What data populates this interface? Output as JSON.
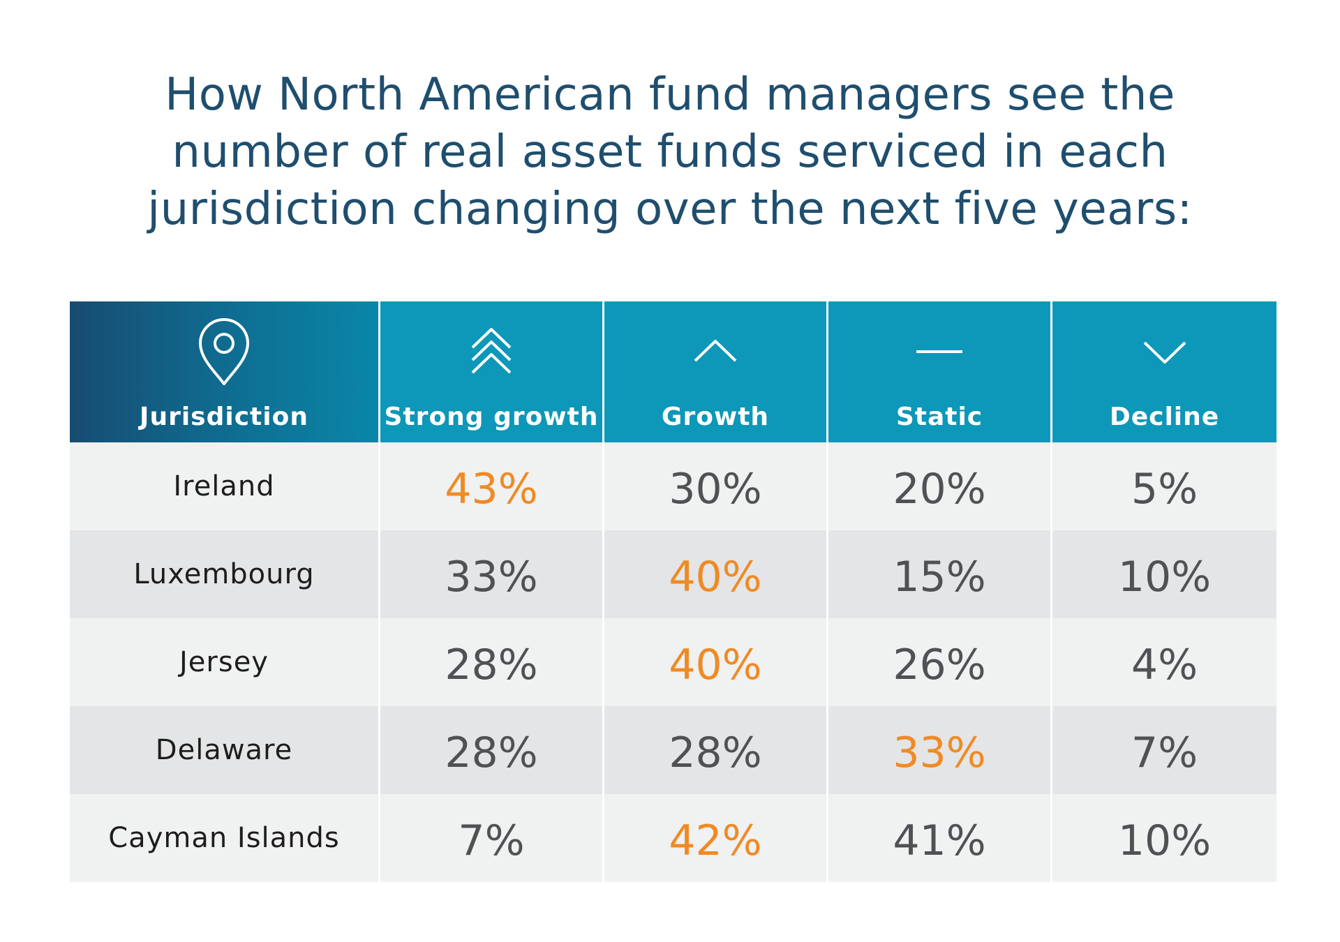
{
  "title": {
    "line1": "How North American fund managers see the",
    "line2": "number of real asset funds serviced in each",
    "line3": "jurisdiction changing over the next five years:"
  },
  "colors": {
    "title": "#1f4e6e",
    "header_bg": "#0d97b8",
    "highlight": "#f08a24",
    "value": "#505154",
    "row_light": "#f0f1f1",
    "row_dark": "#e4e5e6"
  },
  "chart_data": {
    "type": "table",
    "title": "How North American fund managers see the number of real asset funds serviced in each jurisdiction changing over the next five years:",
    "columns": [
      {
        "label": "Jurisdiction",
        "icon": "location-pin-icon"
      },
      {
        "label": "Strong growth",
        "icon": "triple-chevron-up-icon"
      },
      {
        "label": "Growth",
        "icon": "chevron-up-icon"
      },
      {
        "label": "Static",
        "icon": "dash-icon"
      },
      {
        "label": "Decline",
        "icon": "chevron-down-icon"
      }
    ],
    "rows": [
      {
        "jurisdiction": "Ireland",
        "values": [
          "43%",
          "30%",
          "20%",
          "5%"
        ],
        "highlight": 0
      },
      {
        "jurisdiction": "Luxembourg",
        "values": [
          "33%",
          "40%",
          "15%",
          "10%"
        ],
        "highlight": 1
      },
      {
        "jurisdiction": "Jersey",
        "values": [
          "28%",
          "40%",
          "26%",
          "4%"
        ],
        "highlight": 1
      },
      {
        "jurisdiction": "Delaware",
        "values": [
          "28%",
          "28%",
          "33%",
          "7%"
        ],
        "highlight": 2
      },
      {
        "jurisdiction": "Cayman Islands",
        "values": [
          "7%",
          "42%",
          "41%",
          "10%"
        ],
        "highlight": 1
      }
    ]
  }
}
